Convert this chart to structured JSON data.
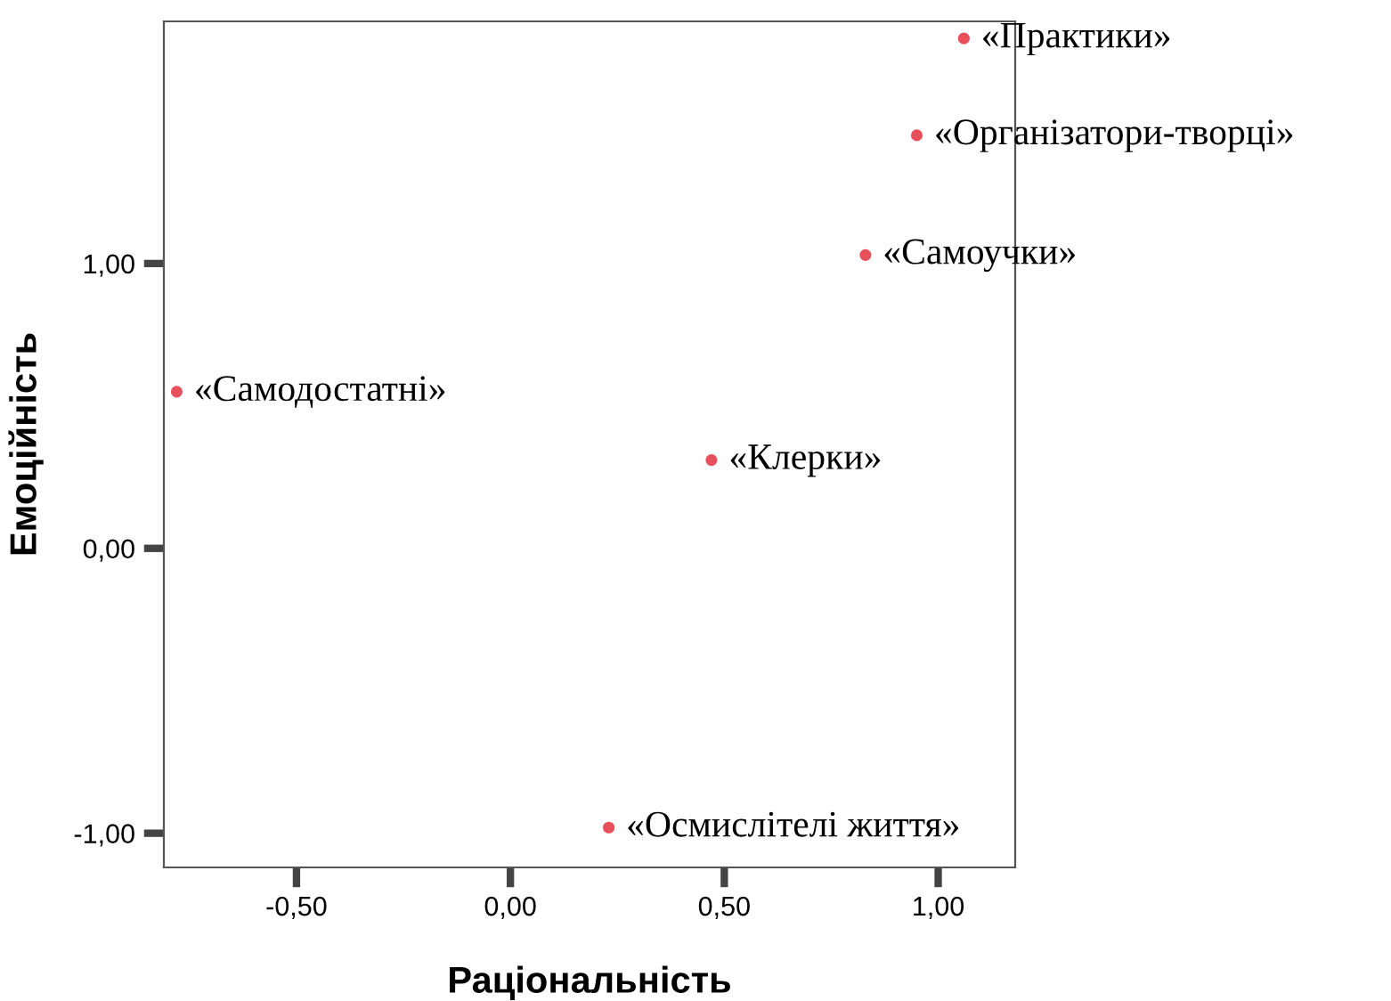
{
  "chart_data": {
    "type": "scatter",
    "xlabel": "Раціональність",
    "ylabel": "Емоційність",
    "x": [
      1.06,
      0.95,
      0.83,
      -0.78,
      0.47,
      0.23
    ],
    "values": [
      1.79,
      1.45,
      1.03,
      0.55,
      0.31,
      -0.98
    ],
    "color": "#e8505b",
    "marker": "circle",
    "annotations": [
      {
        "text": "«Практики»",
        "x": 1.06,
        "y": 1.79
      },
      {
        "text": "«Організатори-творці»",
        "x": 0.95,
        "y": 1.45
      },
      {
        "text": "«Самоучки»",
        "x": 0.83,
        "y": 1.03
      },
      {
        "text": "«Самодостатні»",
        "x": -0.78,
        "y": 0.55
      },
      {
        "text": "«Клерки»",
        "x": 0.47,
        "y": 0.31
      },
      {
        "text": "«Осмислітелі життя»",
        "x": 0.23,
        "y": -0.98
      }
    ],
    "xlim": [
      -0.81,
      1.18
    ],
    "ylim": [
      -1.12,
      1.85
    ],
    "xticks": [
      {
        "value": -0.5,
        "label": "-0,50"
      },
      {
        "value": 0,
        "label": "0,00"
      },
      {
        "value": 0.5,
        "label": "0,50"
      },
      {
        "value": 1.0,
        "label": "1,00"
      }
    ],
    "yticks": [
      {
        "value": -1.0,
        "label": "-1,00"
      },
      {
        "value": 0,
        "label": "0,00"
      },
      {
        "value": 1.0,
        "label": "1,00"
      }
    ],
    "grid": false
  }
}
